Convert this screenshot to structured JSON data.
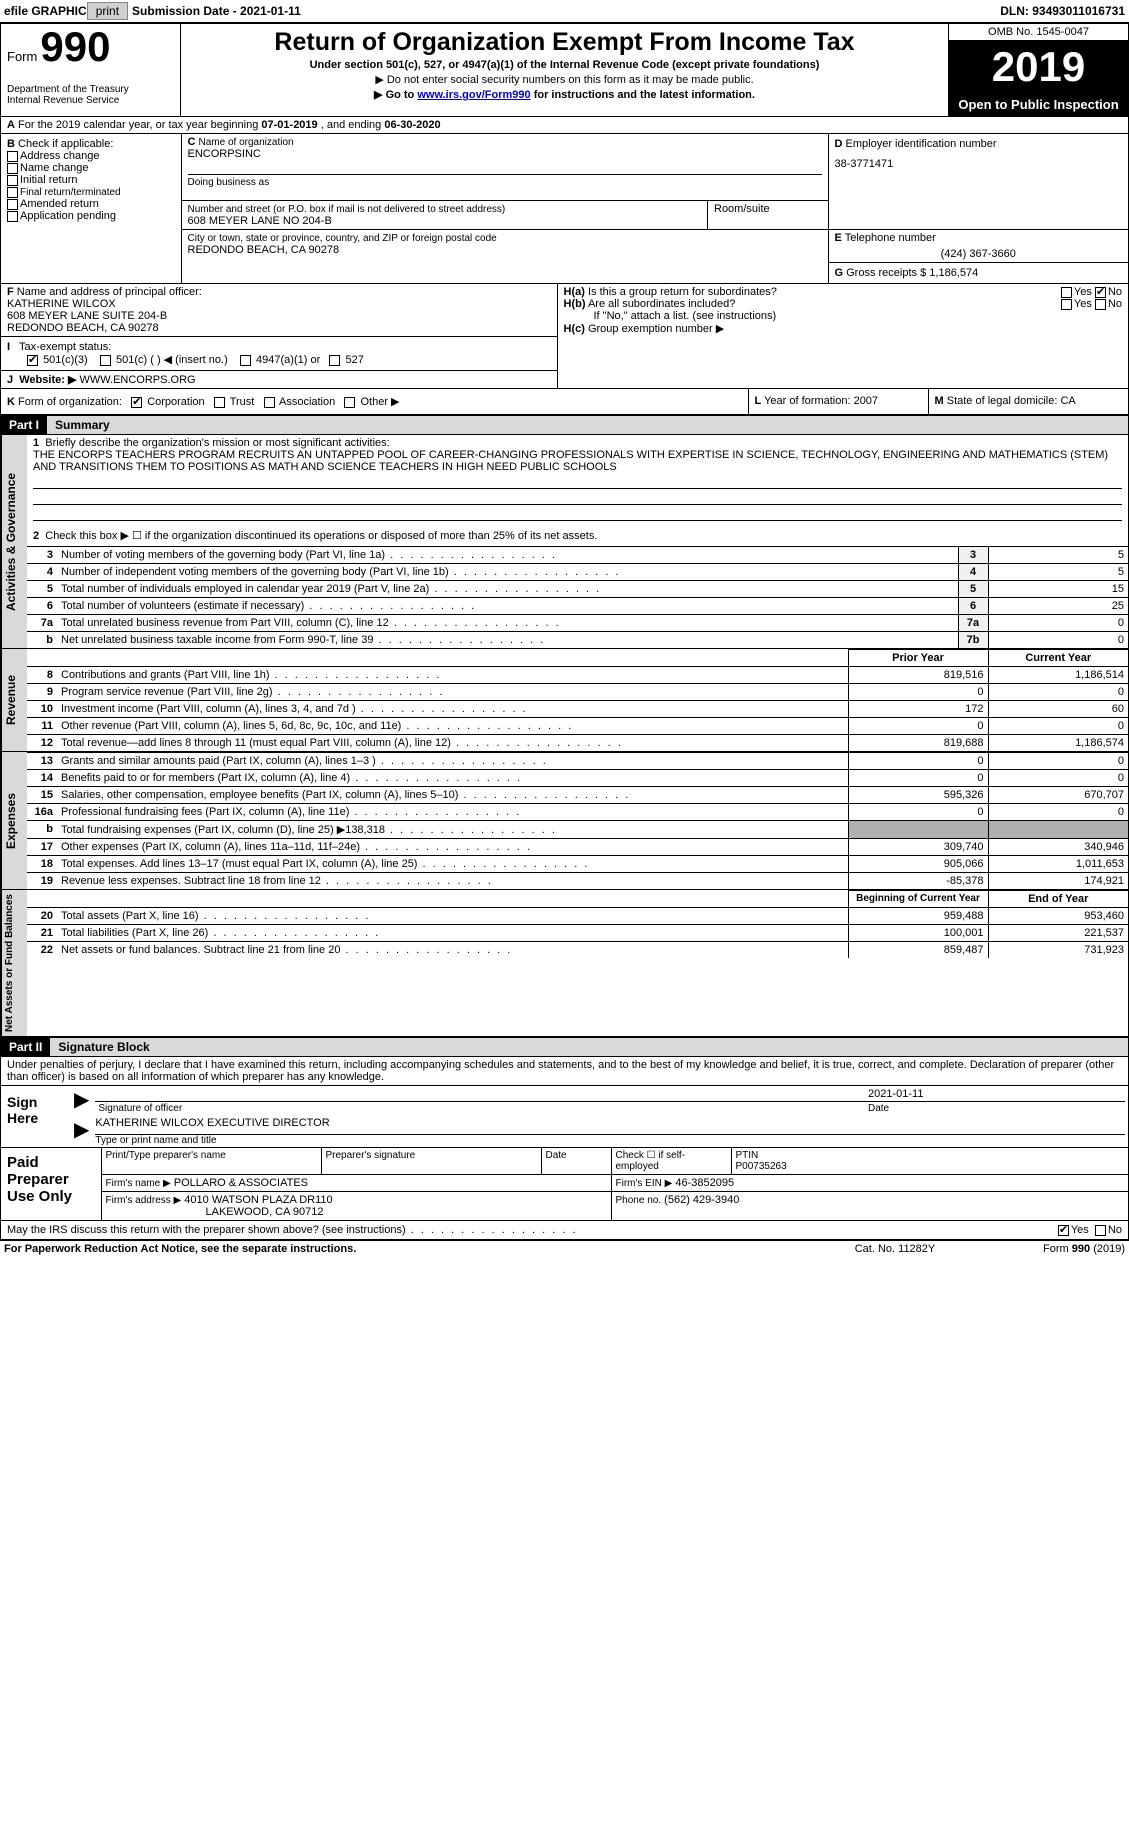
{
  "topbar": {
    "efile": "efile GRAPHIC",
    "print": "print",
    "submission": "Submission Date - 2021-01-11",
    "dln_label": "DLN:",
    "dln": "93493011016731"
  },
  "header": {
    "form_label": "Form",
    "form_no": "990",
    "dept": "Department of the Treasury\nInternal Revenue Service",
    "title": "Return of Organization Exempt From Income Tax",
    "sub1": "Under section 501(c), 527, or 4947(a)(1) of the Internal Revenue Code (except private foundations)",
    "sub2a": "▶ Do not enter social security numbers on this form as it may be made public.",
    "sub2b_pre": "▶ Go to ",
    "sub2b_link": "www.irs.gov/Form990",
    "sub2b_post": " for instructions and the latest information.",
    "omb": "OMB No. 1545-0047",
    "year": "2019",
    "inspection": "Open to Public Inspection"
  },
  "line_a": {
    "prefix": "A",
    "text": "For the 2019 calendar year, or tax year beginning ",
    "begin": "07-01-2019",
    "mid": " , and ending ",
    "end": "06-30-2020"
  },
  "box_b": {
    "label": "B",
    "title": "Check if applicable:",
    "items": [
      "Address change",
      "Name change",
      "Initial return",
      "Final return/terminated",
      "Amended return",
      "Application pending"
    ]
  },
  "box_c": {
    "label": "C",
    "name_label": "Name of organization",
    "name": "ENCORPSINC",
    "dba_label": "Doing business as",
    "addr_label": "Number and street (or P.O. box if mail is not delivered to street address)",
    "room_label": "Room/suite",
    "addr": "608 MEYER LANE NO 204-B",
    "city_label": "City or town, state or province, country, and ZIP or foreign postal code",
    "city": "REDONDO BEACH, CA  90278"
  },
  "box_d": {
    "label": "D",
    "title": "Employer identification number",
    "ein": "38-3771471"
  },
  "box_e": {
    "label": "E",
    "title": "Telephone number",
    "phone": "(424) 367-3660"
  },
  "box_g": {
    "label": "G",
    "title": "Gross receipts $",
    "amount": "1,186,574"
  },
  "box_f": {
    "label": "F",
    "title": "Name and address of principal officer:",
    "name": "KATHERINE WILCOX",
    "addr1": "608 MEYER LANE SUITE 204-B",
    "addr2": "REDONDO BEACH, CA  90278"
  },
  "box_h": {
    "a_label": "H(a)",
    "a_text": "Is this a group return for subordinates?",
    "a_yes": "Yes",
    "a_no": "No",
    "b_label": "H(b)",
    "b_text": "Are all subordinates included?",
    "b_yes": "Yes",
    "b_no": "No",
    "b_note": "If \"No,\" attach a list. (see instructions)",
    "c_label": "H(c)",
    "c_text": "Group exemption number ▶"
  },
  "box_i": {
    "label": "I",
    "title": "Tax-exempt status:",
    "o1": "501(c)(3)",
    "o2": "501(c) (  ) ◀ (insert no.)",
    "o3": "4947(a)(1) or",
    "o4": "527"
  },
  "box_j": {
    "label": "J",
    "title": "Website: ▶",
    "url": "WWW.ENCORPS.ORG"
  },
  "box_k": {
    "label": "K",
    "title": "Form of organization:",
    "o1": "Corporation",
    "o2": "Trust",
    "o3": "Association",
    "o4": "Other ▶"
  },
  "box_l": {
    "label": "L",
    "text": "Year of formation: 2007"
  },
  "box_m": {
    "label": "M",
    "text": "State of legal domicile: CA"
  },
  "part1": {
    "label": "Part I",
    "title": "Summary",
    "vert1": "Activities & Governance",
    "l1_no": "1",
    "l1": "Briefly describe the organization's mission or most significant activities:",
    "mission": "THE ENCORPS TEACHERS PROGRAM RECRUITS AN UNTAPPED POOL OF CAREER-CHANGING PROFESSIONALS WITH EXPERTISE IN SCIENCE, TECHNOLOGY, ENGINEERING AND MATHEMATICS (STEM) AND TRANSITIONS THEM TO POSITIONS AS MATH AND SCIENCE TEACHERS IN HIGH NEED PUBLIC SCHOOLS",
    "l2_no": "2",
    "l2": "Check this box ▶ ☐  if the organization discontinued its operations or disposed of more than 25% of its net assets.",
    "lines_ag": [
      {
        "no": "3",
        "text": "Number of voting members of the governing body (Part VI, line 1a)",
        "ref": "3",
        "val": "5"
      },
      {
        "no": "4",
        "text": "Number of independent voting members of the governing body (Part VI, line 1b)",
        "ref": "4",
        "val": "5"
      },
      {
        "no": "5",
        "text": "Total number of individuals employed in calendar year 2019 (Part V, line 2a)",
        "ref": "5",
        "val": "15"
      },
      {
        "no": "6",
        "text": "Total number of volunteers (estimate if necessary)",
        "ref": "6",
        "val": "25"
      },
      {
        "no": "7a",
        "text": "Total unrelated business revenue from Part VIII, column (C), line 12",
        "ref": "7a",
        "val": "0"
      },
      {
        "no": "b",
        "text": "Net unrelated business taxable income from Form 990-T, line 39",
        "ref": "7b",
        "val": "0"
      }
    ],
    "vert2": "Revenue",
    "hdr_prior": "Prior Year",
    "hdr_curr": "Current Year",
    "lines_rev": [
      {
        "no": "8",
        "text": "Contributions and grants (Part VIII, line 1h)",
        "prior": "819,516",
        "curr": "1,186,514"
      },
      {
        "no": "9",
        "text": "Program service revenue (Part VIII, line 2g)",
        "prior": "0",
        "curr": "0"
      },
      {
        "no": "10",
        "text": "Investment income (Part VIII, column (A), lines 3, 4, and 7d )",
        "prior": "172",
        "curr": "60"
      },
      {
        "no": "11",
        "text": "Other revenue (Part VIII, column (A), lines 5, 6d, 8c, 9c, 10c, and 11e)",
        "prior": "0",
        "curr": "0"
      },
      {
        "no": "12",
        "text": "Total revenue—add lines 8 through 11 (must equal Part VIII, column (A), line 12)",
        "prior": "819,688",
        "curr": "1,186,574"
      }
    ],
    "vert3": "Expenses",
    "lines_exp": [
      {
        "no": "13",
        "text": "Grants and similar amounts paid (Part IX, column (A), lines 1–3 )",
        "prior": "0",
        "curr": "0"
      },
      {
        "no": "14",
        "text": "Benefits paid to or for members (Part IX, column (A), line 4)",
        "prior": "0",
        "curr": "0"
      },
      {
        "no": "15",
        "text": "Salaries, other compensation, employee benefits (Part IX, column (A), lines 5–10)",
        "prior": "595,326",
        "curr": "670,707"
      },
      {
        "no": "16a",
        "text": "Professional fundraising fees (Part IX, column (A), line 11e)",
        "prior": "0",
        "curr": "0"
      },
      {
        "no": "b",
        "text": "Total fundraising expenses (Part IX, column (D), line 25) ▶138,318",
        "prior": "",
        "curr": "",
        "gray": true
      },
      {
        "no": "17",
        "text": "Other expenses (Part IX, column (A), lines 11a–11d, 11f–24e)",
        "prior": "309,740",
        "curr": "340,946"
      },
      {
        "no": "18",
        "text": "Total expenses. Add lines 13–17 (must equal Part IX, column (A), line 25)",
        "prior": "905,066",
        "curr": "1,011,653"
      },
      {
        "no": "19",
        "text": "Revenue less expenses. Subtract line 18 from line 12",
        "prior": "-85,378",
        "curr": "174,921"
      }
    ],
    "vert4": "Net Assets or Fund Balances",
    "hdr_beg": "Beginning of Current Year",
    "hdr_end": "End of Year",
    "lines_na": [
      {
        "no": "20",
        "text": "Total assets (Part X, line 16)",
        "prior": "959,488",
        "curr": "953,460"
      },
      {
        "no": "21",
        "text": "Total liabilities (Part X, line 26)",
        "prior": "100,001",
        "curr": "221,537"
      },
      {
        "no": "22",
        "text": "Net assets or fund balances. Subtract line 21 from line 20",
        "prior": "859,487",
        "curr": "731,923"
      }
    ]
  },
  "part2": {
    "label": "Part II",
    "title": "Signature Block",
    "perjury": "Under penalties of perjury, I declare that I have examined this return, including accompanying schedules and statements, and to the best of my knowledge and belief, it is true, correct, and complete. Declaration of preparer (other than officer) is based on all information of which preparer has any knowledge.",
    "sign_here": "Sign Here",
    "sig_label": "Signature of officer",
    "date_label": "Date",
    "sig_date": "2021-01-11",
    "name_title": "KATHERINE WILCOX  EXECUTIVE DIRECTOR",
    "name_title_label": "Type or print name and title",
    "paid": "Paid Preparer Use Only",
    "prep_name_label": "Print/Type preparer's name",
    "prep_sig_label": "Preparer's signature",
    "prep_date_label": "Date",
    "prep_self": "Check ☐ if self-employed",
    "ptin_label": "PTIN",
    "ptin": "P00735263",
    "firm_name_label": "Firm's name   ▶",
    "firm_name": "POLLARO & ASSOCIATES",
    "firm_ein_label": "Firm's EIN ▶",
    "firm_ein": "46-3852095",
    "firm_addr_label": "Firm's address ▶",
    "firm_addr1": "4010 WATSON PLAZA DR110",
    "firm_addr2": "LAKEWOOD, CA  90712",
    "firm_phone_label": "Phone no.",
    "firm_phone": "(562) 429-3940",
    "discuss": "May the IRS discuss this return with the preparer shown above? (see instructions)",
    "disc_yes": "Yes",
    "disc_no": "No"
  },
  "footer": {
    "left": "For Paperwork Reduction Act Notice, see the separate instructions.",
    "mid": "Cat. No. 11282Y",
    "right_a": "Form ",
    "right_b": "990",
    "right_c": " (2019)"
  }
}
